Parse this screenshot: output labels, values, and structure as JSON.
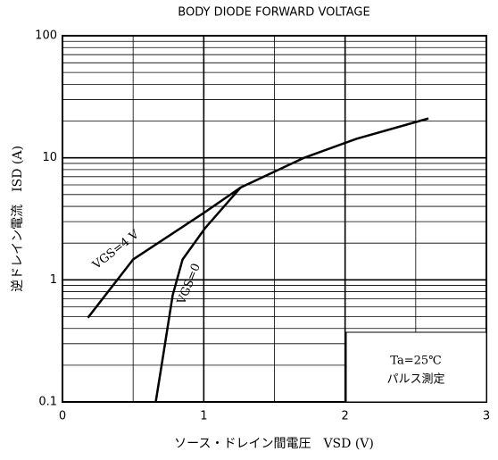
{
  "chart_data": {
    "type": "line",
    "title": "BODY DIODE FORWARD VOLTAGE",
    "x_label": "ソース・ドレイン間電圧　VSD (V)",
    "y_label": "逆ドレイン電流　ISD (A)",
    "xlim": [
      0,
      3
    ],
    "xticks": [
      0,
      1,
      2,
      3
    ],
    "ylim": [
      0.1,
      100
    ],
    "yticks": [
      0.1,
      1,
      10,
      100
    ],
    "y_log": true,
    "grid": true,
    "minor_grid": true,
    "series": [
      {
        "name": "VGS=4 V",
        "color": "#000000",
        "x": [
          0.18,
          0.5,
          1.01,
          1.26,
          1.71,
          2.08,
          2.59
        ],
        "values": [
          0.49,
          1.47,
          3.6,
          5.7,
          10,
          14.3,
          21
        ]
      },
      {
        "name": "VGS=0",
        "color": "#000000",
        "x": [
          0.66,
          0.71,
          0.78,
          0.85,
          1.01,
          1.26
        ],
        "values": [
          0.1,
          0.23,
          0.75,
          1.47,
          2.66,
          5.7
        ]
      }
    ],
    "annotations": [
      "Ta=25℃",
      "パルス測定"
    ]
  }
}
